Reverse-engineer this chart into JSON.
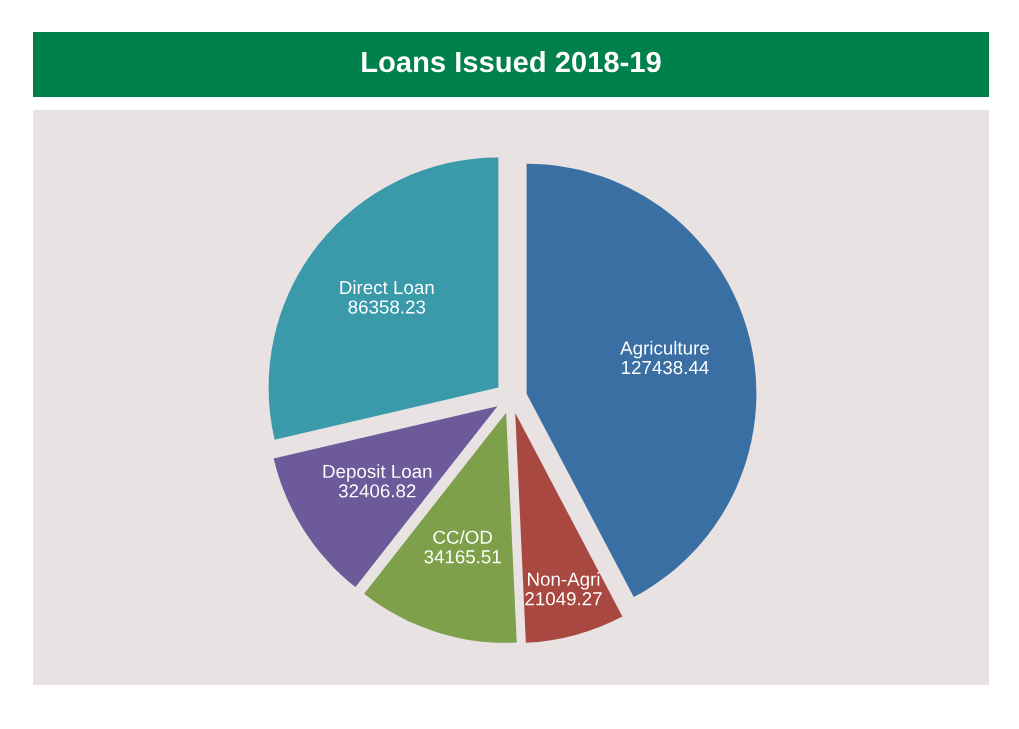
{
  "chart_data": {
    "type": "pie",
    "title": "Loans Issued 2018-19",
    "categories": [
      "Agriculture",
      "Non-Agri",
      "CC/OD",
      "Deposit Loan",
      "Direct Loan"
    ],
    "values": [
      127438.44,
      21049.27,
      34165.51,
      32406.82,
      86358.23
    ],
    "colors": [
      "#3a6fa3",
      "#a84840",
      "#7fa04a",
      "#6c5a9a",
      "#3a9aaa"
    ],
    "data_labels": true
  }
}
